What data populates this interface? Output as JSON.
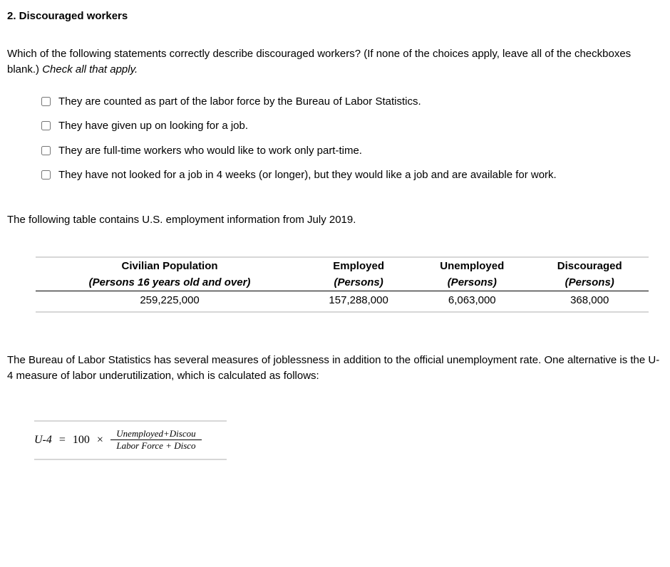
{
  "title": "2. Discouraged workers",
  "prompt": {
    "text": "Which of the following statements correctly describe discouraged workers? (If none of the choices apply, leave all of the checkboxes blank.) ",
    "italic": "Check all that apply."
  },
  "choices": [
    "They are counted as part of the labor force by the Bureau of Labor Statistics.",
    "They have given up on looking for a job.",
    "They are full-time workers who would like to work only part-time.",
    "They have not looked for a job in 4 weeks (or longer), but they would like a job and are available for work."
  ],
  "table_intro": "The following table contains U.S. employment information from July 2019.",
  "table": {
    "columns": [
      {
        "label": "Civilian Population",
        "sub": "(Persons 16 years old and over)"
      },
      {
        "label": "Employed",
        "sub": "(Persons)"
      },
      {
        "label": "Unemployed",
        "sub": "(Persons)"
      },
      {
        "label": "Discouraged",
        "sub": "(Persons)"
      }
    ],
    "row": [
      "259,225,000",
      "157,288,000",
      "6,063,000",
      "368,000"
    ]
  },
  "explain": "The Bureau of Labor Statistics has several measures of joblessness in addition to the official unemployment rate. One alternative is the U-4 measure of labor underutilization, which is calculated as follows:",
  "formula": {
    "lhs": "U-4",
    "eq": "=",
    "hund": "100",
    "times": "×",
    "num": "Unemployed+Discou",
    "den": "Labor Force + Disco"
  }
}
